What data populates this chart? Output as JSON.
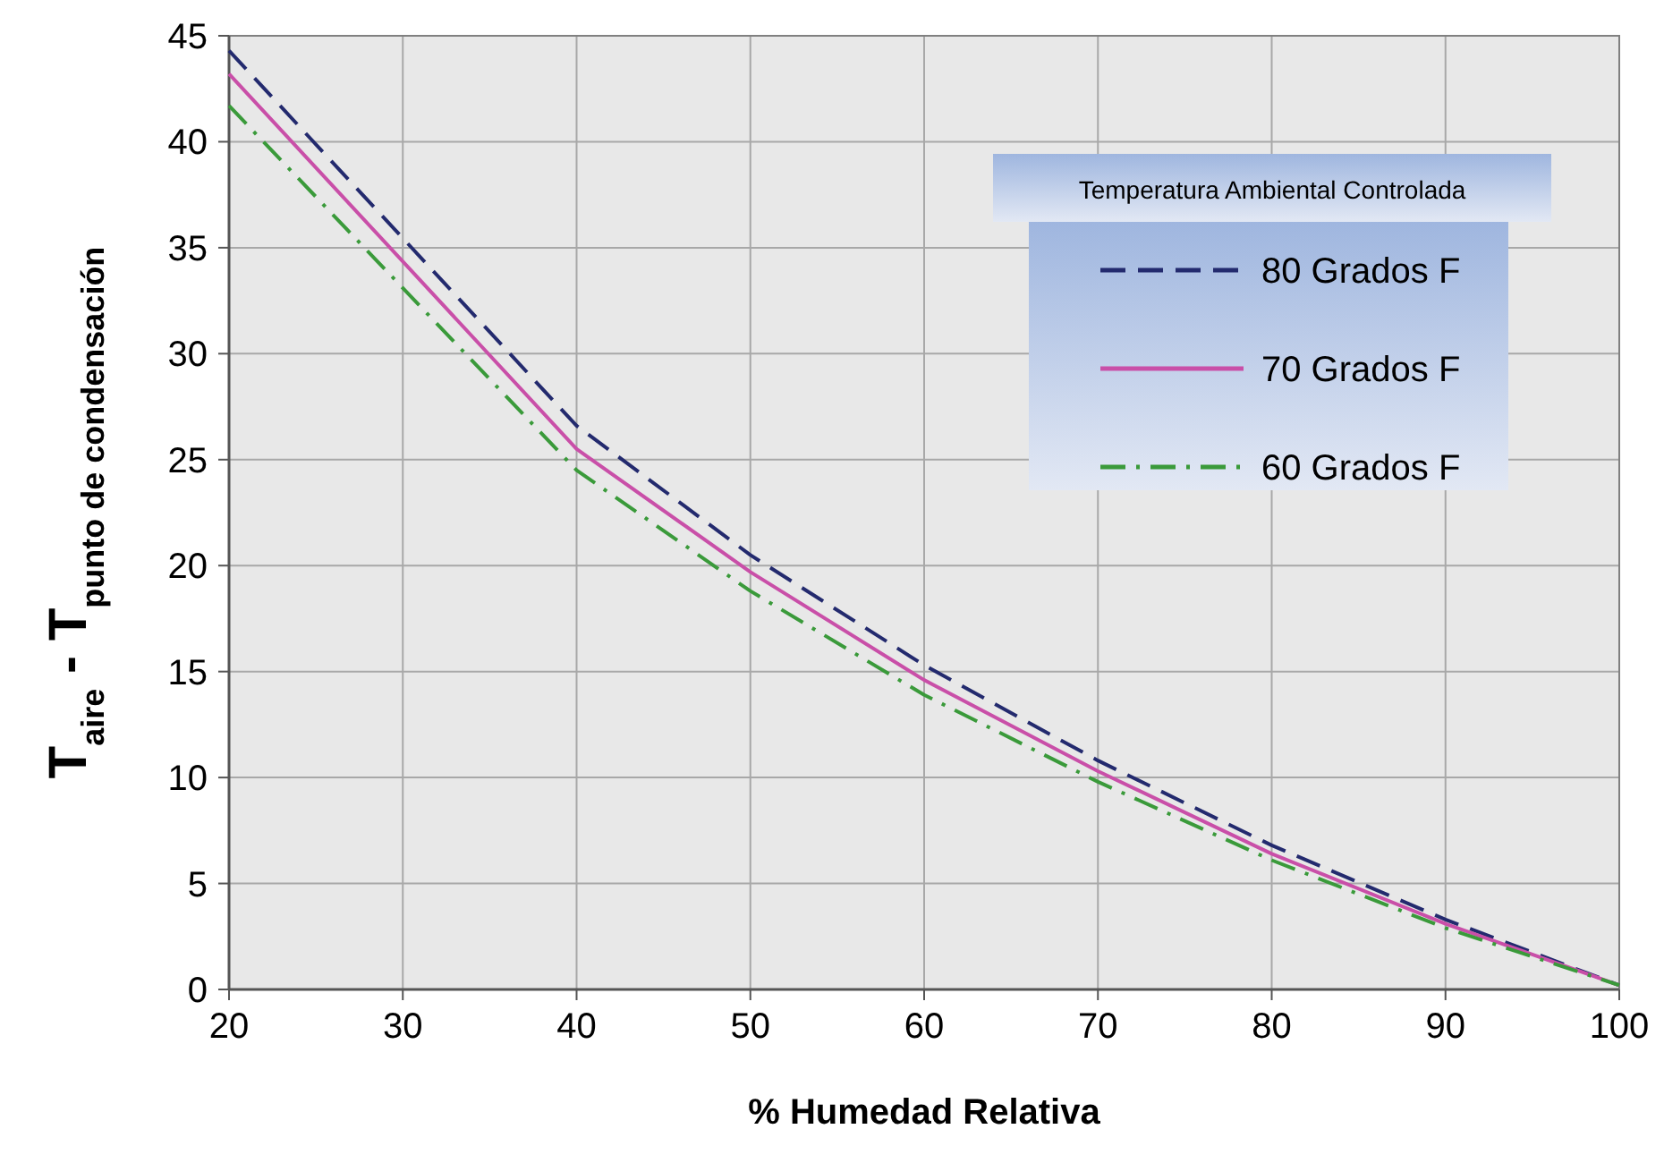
{
  "chart_data": {
    "type": "line",
    "xlabel": "% Humedad Relativa",
    "ylabel": "T$_{aire}$ - T$_{punto de condensación}$",
    "legend_title": "Temperatura Ambiental Controlada",
    "legend": "top right",
    "grid": true,
    "x": [
      20,
      40,
      50,
      60,
      70,
      80,
      90,
      100
    ],
    "xlim": [
      20,
      100
    ],
    "xticks": [
      20,
      30,
      40,
      50,
      60,
      70,
      80,
      90,
      100
    ],
    "ylim": [
      0,
      45
    ],
    "yticks": [
      0,
      5,
      10,
      15,
      20,
      25,
      30,
      35,
      40,
      45
    ],
    "series": [
      {
        "name": "80 Grados F",
        "color": "#232a6e",
        "line_style": "dashed",
        "values": [
          44.3,
          26.6,
          20.5,
          15.3,
          10.8,
          6.8,
          3.3,
          0.2
        ]
      },
      {
        "name": "70 Grados F",
        "color": "#c94fa8",
        "line_style": "solid",
        "values": [
          43.2,
          25.5,
          19.7,
          14.6,
          10.3,
          6.4,
          3.1,
          0.2
        ]
      },
      {
        "name": "60 Grados F",
        "color": "#3a9a3a",
        "line_style": "dashdot",
        "values": [
          41.7,
          24.5,
          18.8,
          13.9,
          9.8,
          6.1,
          2.9,
          0.2
        ]
      }
    ]
  }
}
